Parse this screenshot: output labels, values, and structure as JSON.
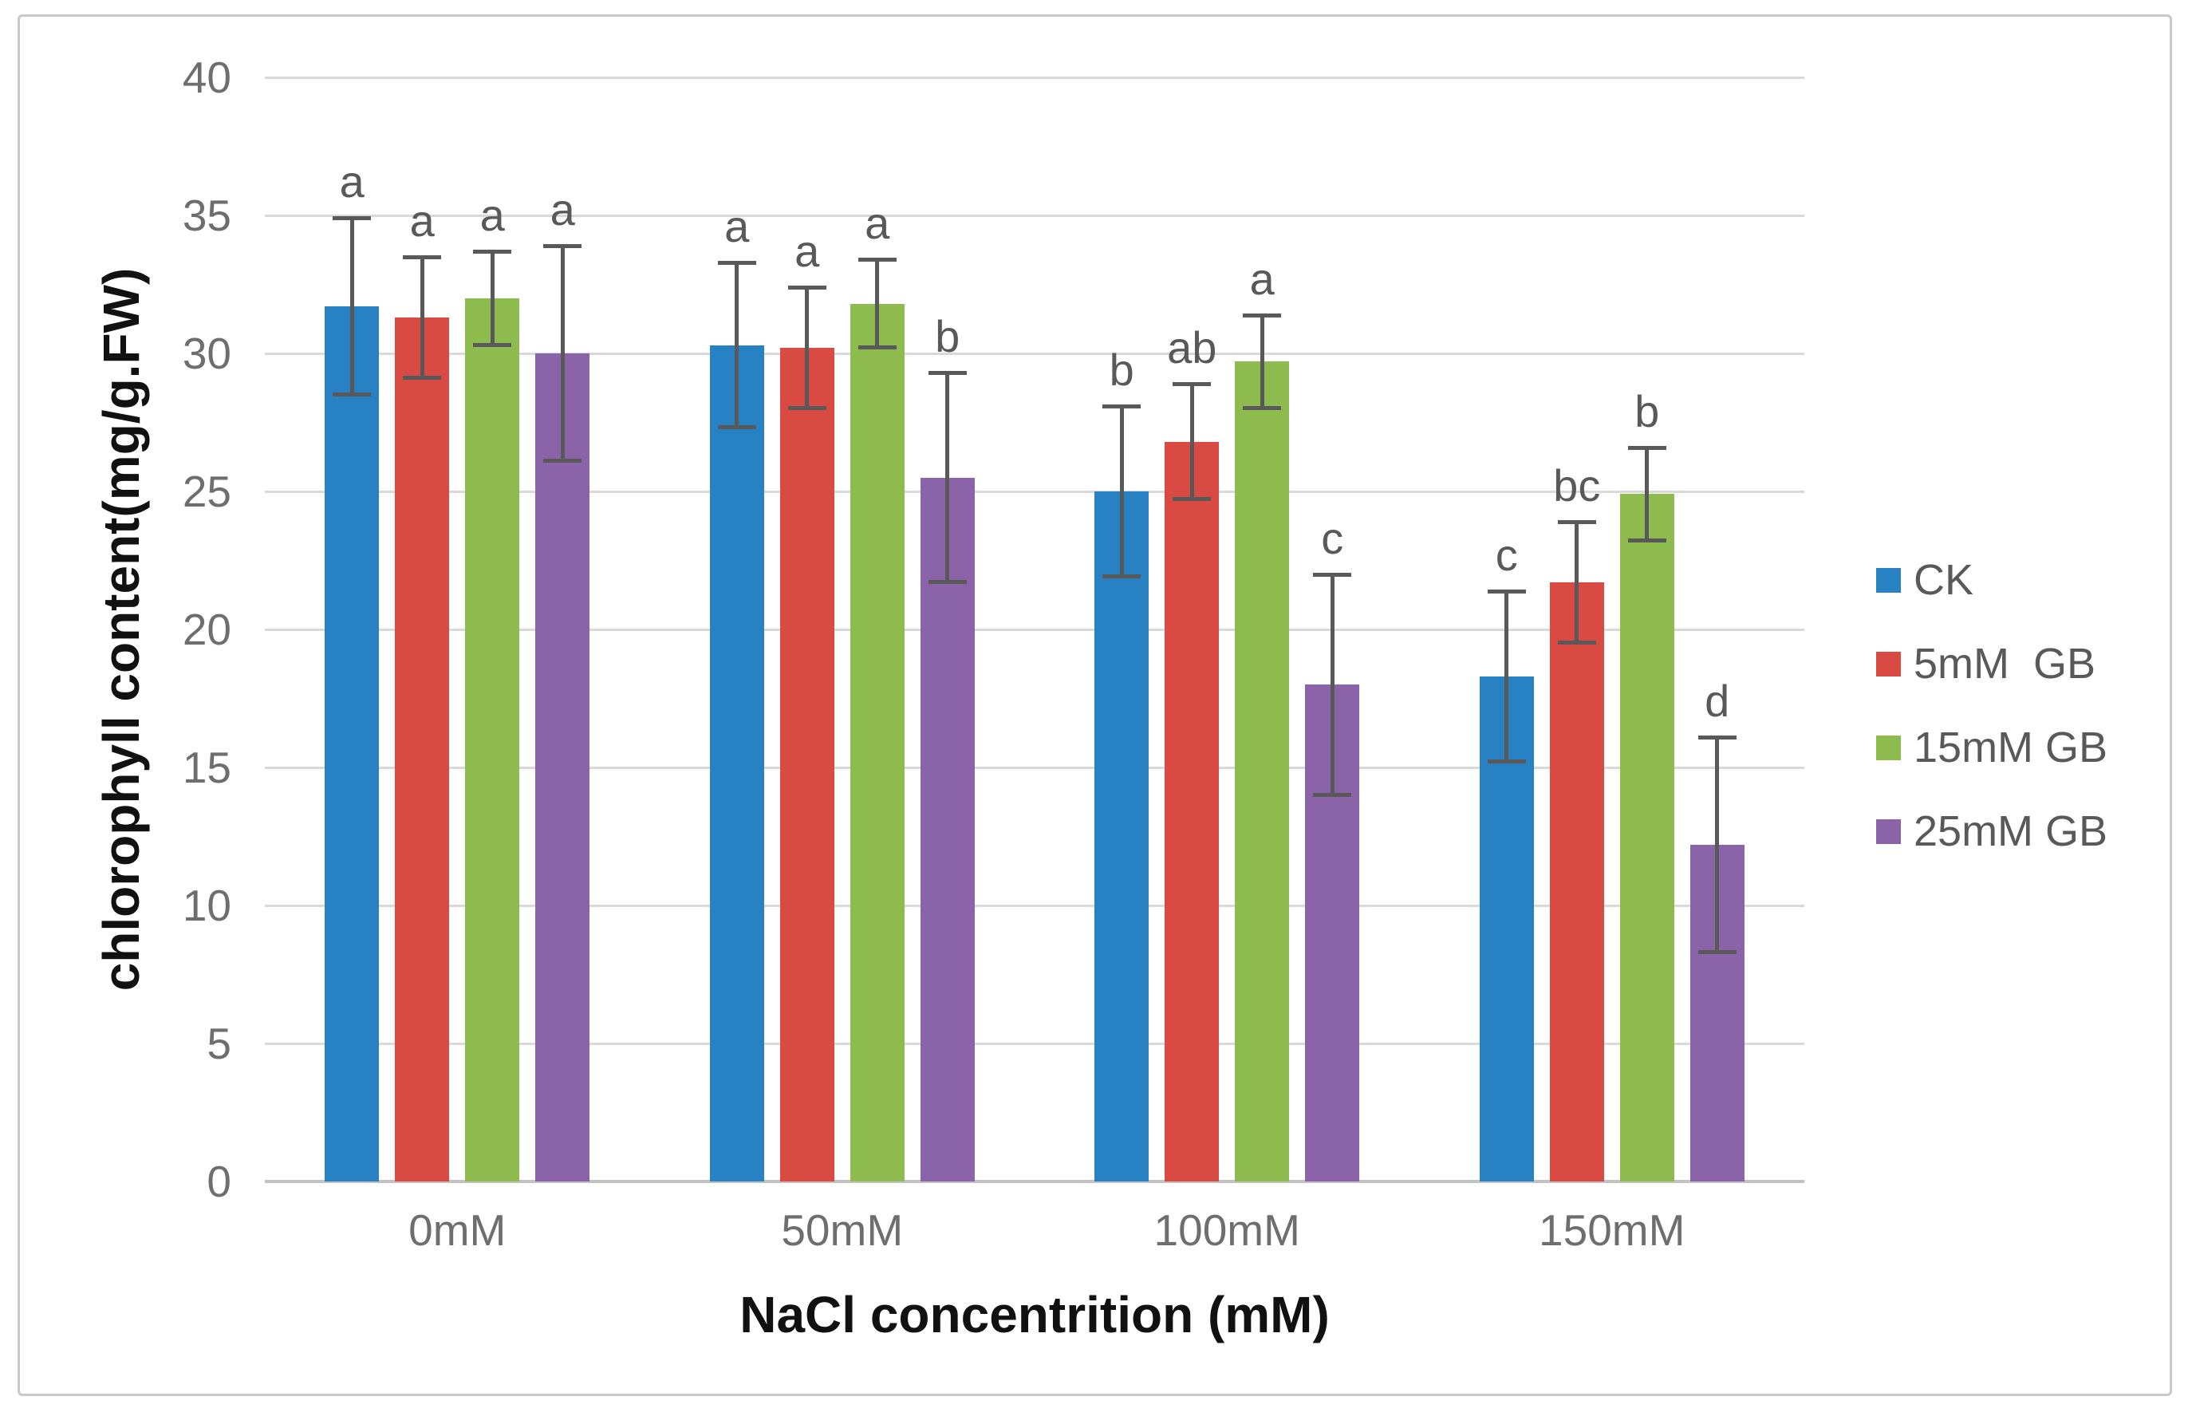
{
  "figure": {
    "border_color": "#c8c8c8",
    "background": "#ffffff"
  },
  "colors": {
    "gridline": "#d9d9d9",
    "axis_line": "#c2c2c2",
    "tick_text": "#6e6e6e",
    "error_bar": "#595959",
    "sig_letter_text": "#595959",
    "legend_text": "#595959"
  },
  "chart_data": {
    "type": "bar",
    "xlabel": "NaCl concentrition (mM)",
    "ylabel": "chlorophyll content(mg/g.FW)",
    "categories": [
      "0mM",
      "50mM",
      "100mM",
      "150mM"
    ],
    "y_ticks": [
      0,
      5,
      10,
      15,
      20,
      25,
      30,
      35,
      40
    ],
    "ylim": [
      0,
      40
    ],
    "grid": "horizontal",
    "legend_position": "right",
    "series": [
      {
        "name": "CK",
        "color": "#2781c3",
        "values": [
          31.7,
          30.3,
          25.0,
          18.3
        ],
        "errors": [
          3.2,
          3.0,
          3.1,
          3.1
        ],
        "sig_letters": [
          "a",
          "a",
          "b",
          "c"
        ]
      },
      {
        "name": "5mM  GB",
        "color": "#d84a42",
        "values": [
          31.3,
          30.2,
          26.8,
          21.7
        ],
        "errors": [
          2.2,
          2.2,
          2.1,
          2.2
        ],
        "sig_letters": [
          "a",
          "a",
          "ab",
          "bc"
        ]
      },
      {
        "name": "15mM GB",
        "color": "#8dbb4d",
        "values": [
          32.0,
          31.8,
          29.7,
          24.9
        ],
        "errors": [
          1.7,
          1.6,
          1.7,
          1.7
        ],
        "sig_letters": [
          "a",
          "a",
          "a",
          "b"
        ]
      },
      {
        "name": "25mM GB",
        "color": "#8a63a9",
        "values": [
          30.0,
          25.5,
          18.0,
          12.2
        ],
        "errors": [
          3.9,
          3.8,
          4.0,
          3.9
        ],
        "sig_letters": [
          "a",
          "b",
          "c",
          "d"
        ]
      }
    ]
  }
}
